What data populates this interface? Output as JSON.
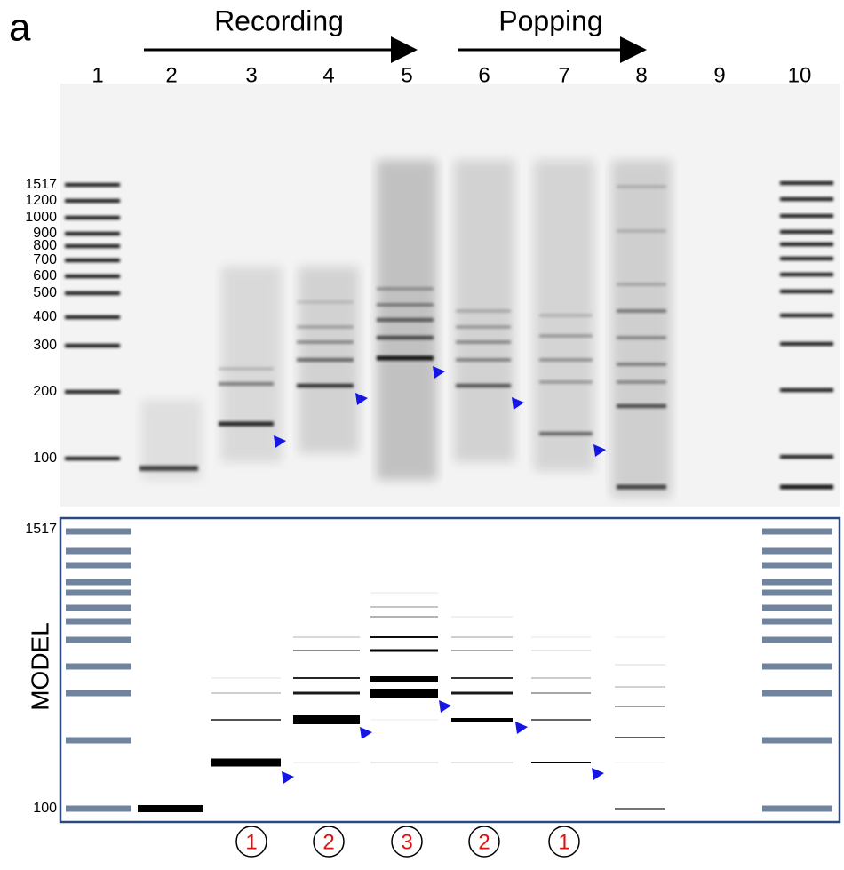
{
  "panel_label": "a",
  "arrows": [
    {
      "label": "Recording"
    },
    {
      "label": "Popping"
    }
  ],
  "gel": {
    "lanes": [
      "1",
      "2",
      "3",
      "4",
      "5",
      "6",
      "7",
      "8",
      "9",
      "10"
    ],
    "size_markers": [
      "1517",
      "1200",
      "1000",
      "900",
      "800",
      "700",
      "600",
      "500",
      "400",
      "300",
      "200",
      "100"
    ]
  },
  "model": {
    "label": "MODEL",
    "size_markers": [
      "1517",
      "100"
    ],
    "steps": [
      "1",
      "2",
      "3",
      "2",
      "1"
    ]
  }
}
